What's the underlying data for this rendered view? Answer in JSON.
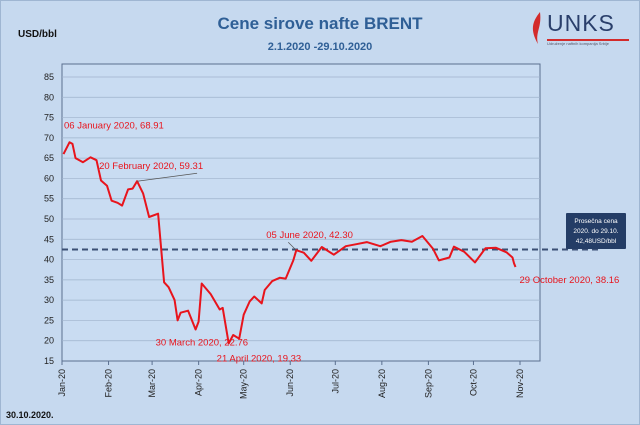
{
  "chart_data": {
    "type": "line",
    "title": "Cene sirove nafte BRENT",
    "subtitle": "2.1.2020 -29.10.2020",
    "ylabel": "USD/bbl",
    "ylim": [
      15,
      85
    ],
    "yticks": [
      15,
      20,
      25,
      30,
      35,
      40,
      45,
      50,
      55,
      60,
      65,
      70,
      75,
      80,
      85
    ],
    "xticks": [
      "Jan-20",
      "Feb-20",
      "Mar-20",
      "Apr-20",
      "May-20",
      "Jun-20",
      "Jul-20",
      "Aug-20",
      "Sep-20",
      "Oct-20",
      "Nov-20"
    ],
    "grid": "horizontal",
    "series": [
      {
        "name": "BRENT",
        "color": "#e8141c",
        "points": [
          [
            "2020-01-02",
            66.0
          ],
          [
            "2020-01-06",
            68.91
          ],
          [
            "2020-01-08",
            68.5
          ],
          [
            "2020-01-10",
            65.0
          ],
          [
            "2020-01-15",
            64.0
          ],
          [
            "2020-01-20",
            65.2
          ],
          [
            "2020-01-24",
            64.5
          ],
          [
            "2020-01-27",
            59.5
          ],
          [
            "2020-01-31",
            58.2
          ],
          [
            "2020-02-03",
            54.5
          ],
          [
            "2020-02-07",
            54.0
          ],
          [
            "2020-02-10",
            53.3
          ],
          [
            "2020-02-14",
            57.3
          ],
          [
            "2020-02-17",
            57.5
          ],
          [
            "2020-02-20",
            59.31
          ],
          [
            "2020-02-24",
            56.3
          ],
          [
            "2020-02-28",
            50.5
          ],
          [
            "2020-03-05",
            51.3
          ],
          [
            "2020-03-09",
            34.4
          ],
          [
            "2020-03-12",
            33.2
          ],
          [
            "2020-03-16",
            30.0
          ],
          [
            "2020-03-18",
            25.0
          ],
          [
            "2020-03-20",
            26.9
          ],
          [
            "2020-03-25",
            27.4
          ],
          [
            "2020-03-30",
            22.76
          ],
          [
            "2020-04-01",
            24.7
          ],
          [
            "2020-04-03",
            34.1
          ],
          [
            "2020-04-09",
            31.5
          ],
          [
            "2020-04-15",
            27.7
          ],
          [
            "2020-04-17",
            28.1
          ],
          [
            "2020-04-21",
            19.33
          ],
          [
            "2020-04-24",
            21.4
          ],
          [
            "2020-04-28",
            20.5
          ],
          [
            "2020-05-01",
            26.4
          ],
          [
            "2020-05-05",
            29.7
          ],
          [
            "2020-05-08",
            30.9
          ],
          [
            "2020-05-13",
            29.2
          ],
          [
            "2020-05-15",
            32.5
          ],
          [
            "2020-05-20",
            34.7
          ],
          [
            "2020-05-25",
            35.5
          ],
          [
            "2020-05-29",
            35.3
          ],
          [
            "2020-06-03",
            39.8
          ],
          [
            "2020-06-05",
            42.3
          ],
          [
            "2020-06-10",
            41.7
          ],
          [
            "2020-06-15",
            39.7
          ],
          [
            "2020-06-22",
            43.1
          ],
          [
            "2020-06-30",
            41.2
          ],
          [
            "2020-07-08",
            43.3
          ],
          [
            "2020-07-15",
            43.8
          ],
          [
            "2020-07-22",
            44.3
          ],
          [
            "2020-07-31",
            43.3
          ],
          [
            "2020-08-07",
            44.4
          ],
          [
            "2020-08-14",
            44.8
          ],
          [
            "2020-08-21",
            44.4
          ],
          [
            "2020-08-28",
            45.8
          ],
          [
            "2020-09-04",
            42.7
          ],
          [
            "2020-09-08",
            39.8
          ],
          [
            "2020-09-15",
            40.5
          ],
          [
            "2020-09-18",
            43.2
          ],
          [
            "2020-09-25",
            41.9
          ],
          [
            "2020-10-02",
            39.3
          ],
          [
            "2020-10-09",
            42.8
          ],
          [
            "2020-10-16",
            42.9
          ],
          [
            "2020-10-23",
            41.8
          ],
          [
            "2020-10-27",
            40.5
          ],
          [
            "2020-10-28",
            39.1
          ],
          [
            "2020-10-29",
            38.16
          ]
        ]
      }
    ],
    "average": {
      "value": 42.48,
      "label_lines": [
        "Prosečna cena",
        "2020. do 29.10.",
        "42,48USD/bbl"
      ],
      "color": "#3b4f74"
    },
    "annotations": [
      {
        "text": "06 January 2020, 68.91",
        "date": "2020-01-06",
        "value": 68.91
      },
      {
        "text": "20 February 2020, 59.31",
        "date": "2020-02-20",
        "value": 59.31
      },
      {
        "text": "30 March 2020, 22.76",
        "date": "2020-03-30",
        "value": 22.76
      },
      {
        "text": "21 April 2020, 19.33",
        "date": "2020-04-21",
        "value": 19.33
      },
      {
        "text": "05 June 2020, 42.30",
        "date": "2020-06-05",
        "value": 42.3
      },
      {
        "text": "29 October 2020, 38.16",
        "date": "2020-10-29",
        "value": 38.16
      }
    ]
  },
  "logo": {
    "name": "UNKS",
    "subtitle": "Udruženje naftnih kompanija Srbije"
  },
  "footer_date": "30.10.2020."
}
